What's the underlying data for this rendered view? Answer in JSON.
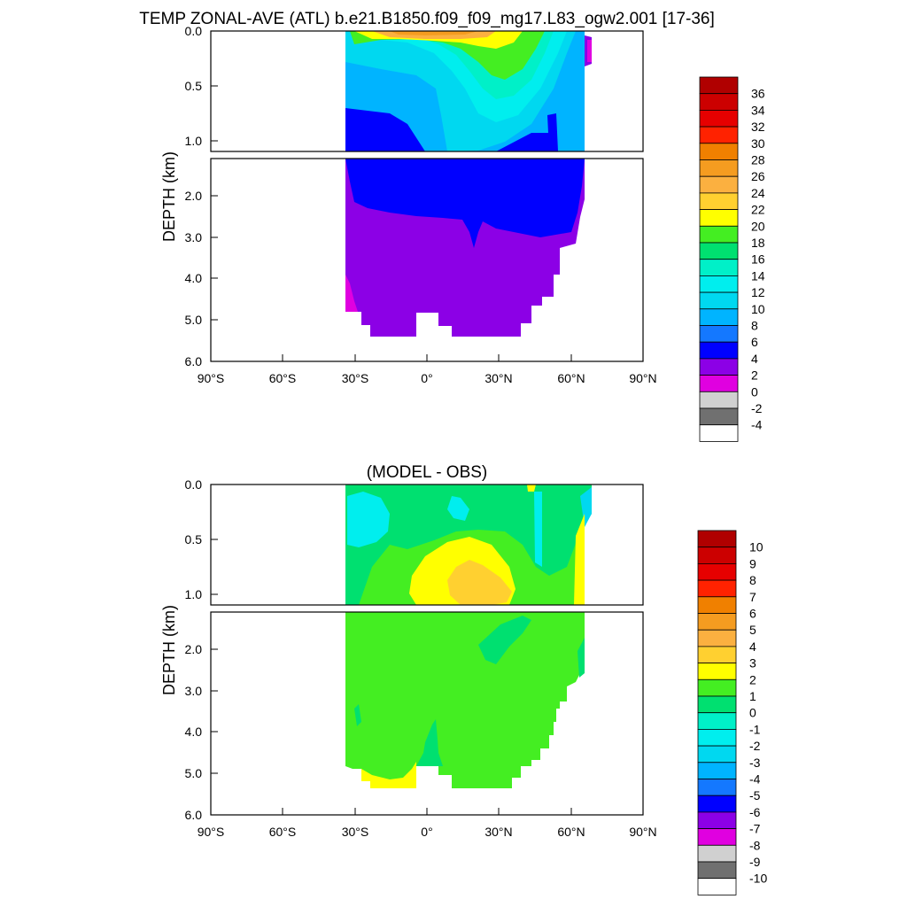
{
  "chart_data": [
    {
      "type": "heatmap",
      "title": "TEMP ZONAL-AVE (ATL) b.e21.B1850.f09_f09_mg17.L83_ogw2.001 [17-36]",
      "ylabel": "DEPTH (km)",
      "xlabel": "",
      "xlim": [
        -90,
        90
      ],
      "ylim": [
        0,
        6
      ],
      "depth_break_km": 1.1,
      "upper_yticks": [
        "0.0",
        "0.5",
        "1.0"
      ],
      "lower_yticks": [
        "2.0",
        "3.0",
        "4.0",
        "5.0",
        "6.0"
      ],
      "xticks": [
        "90°S",
        "60°S",
        "30°S",
        "0°",
        "30°N",
        "60°N",
        "90°N"
      ],
      "colorbar": {
        "labels": [
          "36",
          "34",
          "32",
          "30",
          "28",
          "26",
          "24",
          "22",
          "20",
          "18",
          "16",
          "14",
          "12",
          "10",
          "8",
          "6",
          "4",
          "2",
          "0",
          "-2",
          "-4"
        ],
        "colors": [
          "#b00000",
          "#cc0000",
          "#e60000",
          "#ff2200",
          "#f08000",
          "#f59c20",
          "#fbb040",
          "#ffd030",
          "#ffff00",
          "#44ee22",
          "#00e070",
          "#00f0c8",
          "#00eeee",
          "#00d8f0",
          "#00b4ff",
          "#1478ff",
          "#0000ff",
          "#8c00e6",
          "#e000e0",
          "#d0d0d0",
          "#707070",
          "#ffffff"
        ]
      },
      "regions": [
        {
          "value_range": "2 to 4",
          "color": "#8c00e6",
          "lat": [
            -34,
            65
          ],
          "depth_km": [
            2.6,
            5.4
          ]
        },
        {
          "value_range": "4 to 6",
          "color": "#0000ff",
          "lat": [
            -34,
            65
          ],
          "depth_km": [
            0.7,
            2.6
          ]
        },
        {
          "value_range": "0 to 2",
          "color": "#e000e0",
          "lat": [
            -34,
            -31
          ],
          "depth_km": [
            4.0,
            5.1
          ]
        },
        {
          "value_range": "8 to 12",
          "color": "#00b4ff",
          "lat": [
            -34,
            65
          ],
          "depth_km": [
            0.1,
            0.9
          ]
        },
        {
          "value_range": "12 to 18",
          "color": "#00eeee",
          "lat": [
            5,
            50
          ],
          "depth_km": [
            0.1,
            1.0
          ]
        },
        {
          "value_range": "18 to 22",
          "color": "#44ee22",
          "lat": [
            -30,
            40
          ],
          "depth_km": [
            0,
            0.3
          ]
        },
        {
          "value_range": "24 to 28",
          "color": "#fbb040",
          "lat": [
            -20,
            20
          ],
          "depth_km": [
            0,
            0.1
          ]
        }
      ]
    },
    {
      "type": "heatmap",
      "title": "(MODEL - OBS)",
      "ylabel": "DEPTH (km)",
      "xlabel": "",
      "xlim": [
        -90,
        90
      ],
      "ylim": [
        0,
        6
      ],
      "depth_break_km": 1.1,
      "upper_yticks": [
        "0.0",
        "0.5",
        "1.0"
      ],
      "lower_yticks": [
        "2.0",
        "3.0",
        "4.0",
        "5.0",
        "6.0"
      ],
      "xticks": [
        "90°S",
        "60°S",
        "30°S",
        "0°",
        "30°N",
        "60°N",
        "90°N"
      ],
      "colorbar": {
        "labels": [
          "10",
          "9",
          "8",
          "7",
          "6",
          "5",
          "4",
          "3",
          "2",
          "1",
          "0",
          "-1",
          "-2",
          "-3",
          "-4",
          "-5",
          "-6",
          "-7",
          "-8",
          "-9",
          "-10"
        ],
        "colors": [
          "#b00000",
          "#cc0000",
          "#e60000",
          "#ff2200",
          "#f08000",
          "#f59c20",
          "#fbb040",
          "#ffd030",
          "#ffff00",
          "#44ee22",
          "#00e070",
          "#00f0c8",
          "#00eeee",
          "#00d8f0",
          "#00b4ff",
          "#1478ff",
          "#0000ff",
          "#8c00e6",
          "#e000e0",
          "#d0d0d0",
          "#707070",
          "#ffffff"
        ]
      },
      "regions": [
        {
          "value_range": "1 to 2",
          "color": "#44ee22",
          "lat": [
            -34,
            65
          ],
          "depth_km": [
            0,
            5.4
          ]
        },
        {
          "value_range": "0 to 1",
          "color": "#00e070",
          "lat": [
            -34,
            65
          ],
          "depth_km": [
            0,
            0.5
          ]
        },
        {
          "value_range": "-2 to 0",
          "color": "#00eeee",
          "lat": [
            -34,
            -22
          ],
          "depth_km": [
            0.05,
            0.6
          ]
        },
        {
          "value_range": "2 to 3",
          "color": "#ffff00",
          "lat": [
            -2,
            35
          ],
          "depth_km": [
            0.5,
            1.3
          ]
        },
        {
          "value_range": "3 to 4",
          "color": "#ffd030",
          "lat": [
            8,
            34
          ],
          "depth_km": [
            0.7,
            1.0
          ]
        },
        {
          "value_range": "2 to 3",
          "color": "#ffff00",
          "lat": [
            -30,
            -5
          ],
          "depth_km": [
            5.1,
            5.4
          ]
        },
        {
          "value_range": "2 to 3",
          "color": "#ffff00",
          "lat": [
            60,
            65
          ],
          "depth_km": [
            0.4,
            1.1
          ]
        }
      ]
    }
  ]
}
